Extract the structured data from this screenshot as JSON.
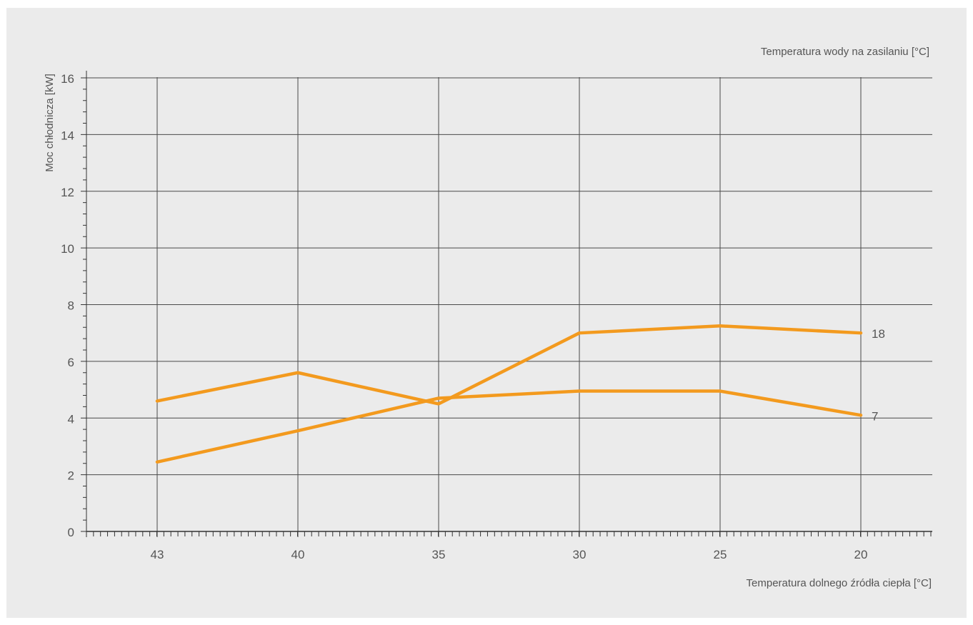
{
  "chart_data": {
    "type": "line",
    "title": "",
    "legend_title": "Temperatura wody na zasilaniu [°C]",
    "xlabel": "Temperatura dolnego źródła ciepła [°C]",
    "ylabel": "Moc chłodnicza [kW]",
    "x_categories": [
      "43",
      "40",
      "35",
      "30",
      "25",
      "20"
    ],
    "ylim": [
      0,
      16
    ],
    "y_ticks": [
      0,
      2,
      4,
      6,
      8,
      10,
      12,
      14,
      16
    ],
    "grid": true,
    "series": [
      {
        "name": "18",
        "values": [
          4.6,
          5.6,
          4.5,
          7.0,
          7.25,
          7.0
        ]
      },
      {
        "name": "7",
        "values": [
          2.45,
          3.55,
          4.7,
          4.95,
          4.95,
          4.1
        ]
      }
    ],
    "colors": {
      "line": "#f39a1e",
      "grid": "#4a4a4a",
      "axis": "#333333",
      "background": "#ebebeb"
    }
  }
}
